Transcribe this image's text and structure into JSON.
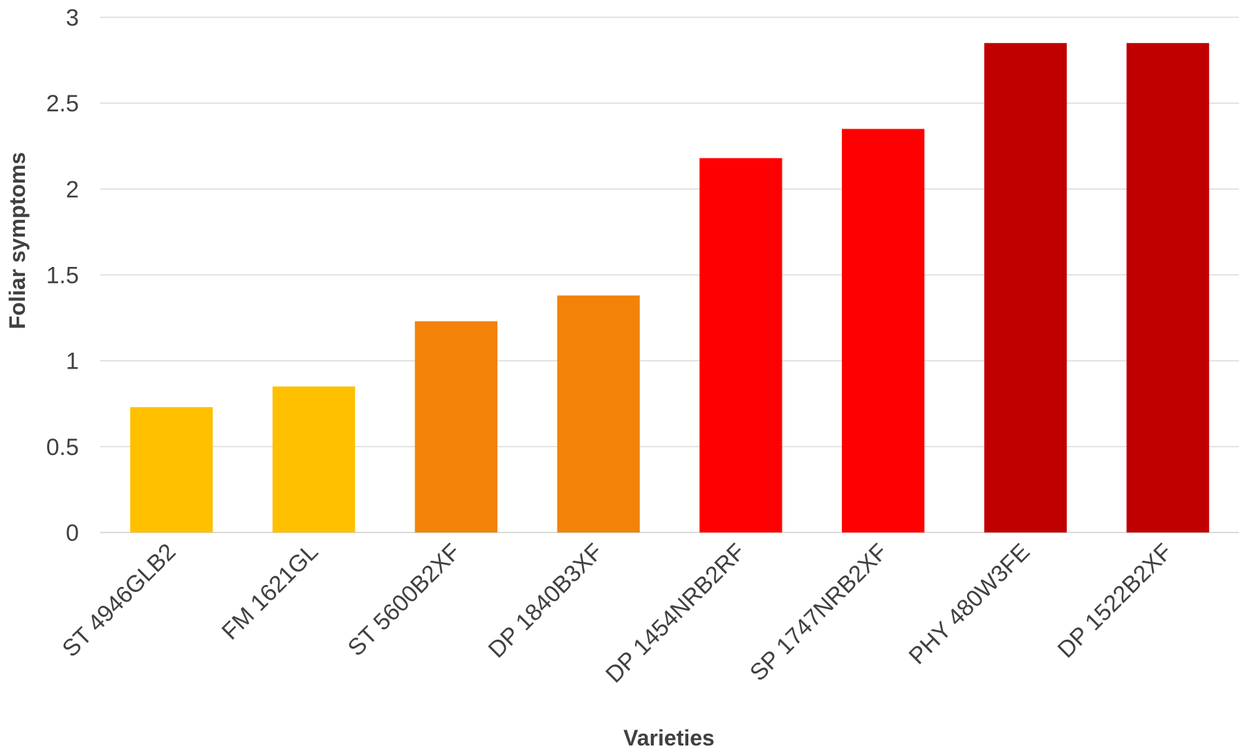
{
  "chart_data": {
    "type": "bar",
    "title": "",
    "xlabel": "Varieties",
    "ylabel": "Foliar symptoms",
    "ylim": [
      0,
      3
    ],
    "yticks": [
      "0",
      "0.5",
      "1",
      "1.5",
      "2",
      "2.5",
      "3"
    ],
    "grid": true,
    "legend": "none",
    "categories": [
      "ST 4946GLB2",
      "FM 1621GL",
      "ST 5600B2XF",
      "DP 1840B3XF",
      "DP 1454NRB2RF",
      "SP 1747NRB2XF",
      "PHY 480W3FE",
      "DP 1522B2XF"
    ],
    "values": [
      0.73,
      0.85,
      1.23,
      1.38,
      2.18,
      2.35,
      2.85,
      2.85
    ],
    "bar_colors": [
      "#FFC000",
      "#FFC000",
      "#F28308",
      "#F28308",
      "#FF0000",
      "#FF0000",
      "#C00000",
      "#C00000"
    ]
  }
}
